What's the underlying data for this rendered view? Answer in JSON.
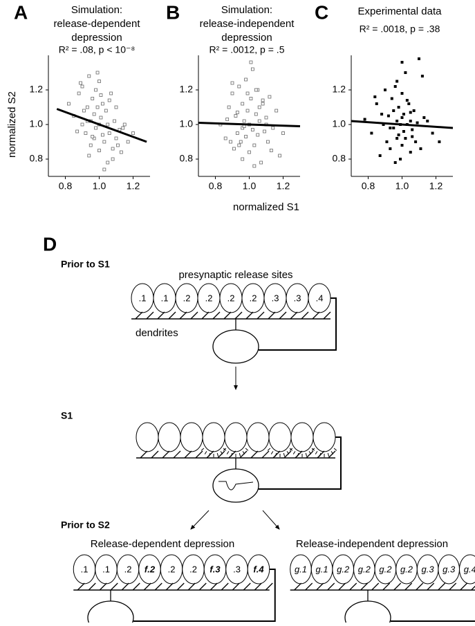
{
  "chart_data": [
    {
      "type": "scatter",
      "label": "A",
      "title": [
        "Simulation:",
        "release-dependent",
        "depression"
      ],
      "subtitle": "R² = .08, p < 10⁻⁸",
      "y_label": "normalized S2",
      "marker": "open",
      "color": "#000000",
      "x": [
        0.82,
        0.85,
        0.88,
        0.9,
        0.9,
        0.92,
        0.93,
        0.94,
        0.95,
        0.95,
        0.96,
        0.97,
        0.97,
        0.98,
        0.98,
        0.99,
        1.0,
        1.0,
        1.0,
        1.01,
        1.02,
        1.02,
        1.03,
        1.04,
        1.05,
        1.05,
        1.06,
        1.07,
        1.08,
        1.09,
        1.1,
        1.1,
        1.12,
        1.13,
        1.15,
        1.17,
        1.2,
        0.87,
        0.91,
        0.94,
        0.99,
        1.03,
        1.06,
        1.11,
        0.96,
        1.01,
        0.89,
        1.08,
        0.93,
        1.14
      ],
      "values": [
        1.12,
        1.05,
        1.18,
        1.0,
        1.22,
        0.95,
        1.1,
        1.28,
        1.02,
        0.88,
        1.15,
        1.06,
        0.92,
        1.2,
        0.98,
        1.1,
        1.0,
        0.85,
        1.25,
        1.04,
        0.94,
        1.12,
        0.9,
        1.08,
        0.78,
        1.0,
        0.95,
        1.18,
        0.86,
        1.02,
        0.92,
        1.1,
        0.97,
        0.84,
        1.0,
        0.9,
        0.95,
        0.96,
        1.08,
        0.82,
        1.3,
        0.74,
        1.14,
        0.88,
        0.93,
        1.17,
        1.24,
        0.8,
        1.02,
        0.98
      ],
      "fit": {
        "x": [
          0.75,
          1.28
        ],
        "y": [
          1.09,
          0.9
        ]
      },
      "xlim": [
        0.7,
        1.3
      ],
      "ylim": [
        0.7,
        1.4
      ],
      "xticks": [
        0.8,
        {
          "value": 1.0,
          "label": "1.0"
        },
        1.2
      ],
      "yticks": [
        0.8,
        {
          "value": 1.0,
          "label": "1.0"
        },
        1.2
      ]
    },
    {
      "type": "scatter",
      "label": "B",
      "title": [
        "Simulation:",
        "release-independent",
        "depression"
      ],
      "subtitle": "R² = .0012, p = .5",
      "x_label": "normalized S1",
      "marker": "open",
      "color": "#000000",
      "x": [
        0.83,
        0.86,
        0.88,
        0.9,
        0.91,
        0.92,
        0.93,
        0.94,
        0.95,
        0.96,
        0.96,
        0.97,
        0.98,
        0.98,
        0.99,
        1.0,
        1.0,
        1.01,
        1.02,
        1.02,
        1.03,
        1.04,
        1.05,
        1.05,
        1.06,
        1.07,
        1.08,
        1.09,
        1.1,
        1.11,
        1.12,
        1.14,
        1.16,
        1.18,
        1.2,
        0.87,
        0.9,
        0.94,
        0.99,
        1.03,
        1.06,
        1.1,
        0.96,
        1.01,
        0.89,
        1.08,
        0.93,
        1.13,
        0.97,
        1.04
      ],
      "values": [
        1.0,
        0.92,
        1.1,
        1.18,
        0.86,
        1.05,
        0.95,
        1.22,
        0.9,
        1.12,
        0.8,
        1.02,
        1.26,
        0.93,
        1.08,
        1.0,
        0.84,
        1.15,
        0.97,
        1.32,
        0.88,
        1.06,
        1.2,
        0.94,
        1.02,
        0.78,
        1.12,
        0.96,
        1.04,
        0.9,
        1.16,
        0.98,
        1.08,
        0.82,
        0.95,
        1.03,
        1.24,
        0.88,
        1.18,
        0.76,
        1.1,
        1.0,
        0.98,
        1.36,
        0.9,
        1.14,
        1.07,
        0.85,
        0.99,
        1.2
      ],
      "fit": {
        "x": [
          0.7,
          1.3
        ],
        "y": [
          1.01,
          0.99
        ]
      },
      "xlim": [
        0.7,
        1.3
      ],
      "ylim": [
        0.7,
        1.4
      ],
      "xticks": [
        0.8,
        {
          "value": 1.0,
          "label": "1.0"
        },
        1.2
      ],
      "yticks": [
        0.8,
        {
          "value": 1.0,
          "label": "1.0"
        },
        1.2
      ]
    },
    {
      "type": "scatter",
      "label": "C",
      "title": [
        "Experimental data"
      ],
      "subtitle": "R² = .0018, p = .38",
      "marker": "filled",
      "color": "#000000",
      "x": [
        0.78,
        0.82,
        0.85,
        0.87,
        0.89,
        0.9,
        0.91,
        0.92,
        0.93,
        0.94,
        0.95,
        0.95,
        0.96,
        0.97,
        0.97,
        0.98,
        0.98,
        0.99,
        1.0,
        1.0,
        1.0,
        1.01,
        1.01,
        1.02,
        1.02,
        1.03,
        1.04,
        1.05,
        1.05,
        1.06,
        1.07,
        1.08,
        1.1,
        1.12,
        1.15,
        1.18,
        1.22,
        0.88,
        0.93,
        0.96,
        0.99,
        1.03,
        1.06,
        1.09,
        1.11,
        1.13,
        0.84,
        1.0,
        0.97,
        1.05
      ],
      "values": [
        1.03,
        0.95,
        1.12,
        0.82,
        1.0,
        1.2,
        0.9,
        1.05,
        0.86,
        1.15,
        0.98,
        1.08,
        0.78,
        1.02,
        1.25,
        0.94,
        1.1,
        1.0,
        0.88,
        1.04,
        1.18,
        0.96,
        1.06,
        0.92,
        1.3,
        1.0,
        1.12,
        0.84,
        1.02,
        0.97,
        1.08,
        0.9,
        1.38,
        1.28,
        1.02,
        0.95,
        0.9,
        1.06,
        0.98,
        1.22,
        0.8,
        1.14,
        0.93,
        1.01,
        0.86,
        1.04,
        1.16,
        1.36,
        0.92,
        1.07
      ],
      "fit": {
        "x": [
          0.7,
          1.3
        ],
        "y": [
          1.02,
          0.98
        ]
      },
      "xlim": [
        0.7,
        1.3
      ],
      "ylim": [
        0.7,
        1.4
      ],
      "xticks": [
        0.8,
        {
          "value": 1.0,
          "label": "1.0"
        },
        1.2
      ],
      "yticks": [
        0.8,
        {
          "value": 1.0,
          "label": "1.0"
        },
        1.2
      ]
    }
  ],
  "diagram": {
    "label": "D",
    "prior_s1": {
      "title": "Prior to S1",
      "sites_label": "presynaptic release sites",
      "dendrites_label": "dendrites",
      "sites": [
        ".1",
        ".1",
        ".2",
        ".2",
        ".2",
        ".2",
        ".3",
        ".3",
        ".4"
      ]
    },
    "s1": {
      "title": "S1"
    },
    "prior_s2": {
      "title": "Prior to S2",
      "dependent": {
        "title": "Release-dependent depression",
        "sites": [
          ".1",
          ".1",
          ".2",
          "f.2",
          ".2",
          ".2",
          "f.3",
          ".3",
          "f.4"
        ]
      },
      "independent": {
        "title": "Release-independent depression",
        "sites": [
          "g.1",
          "g.1",
          "g.2",
          "g.2",
          "g.2",
          "g.2",
          "g.3",
          "g.3",
          "g.4"
        ]
      }
    }
  }
}
